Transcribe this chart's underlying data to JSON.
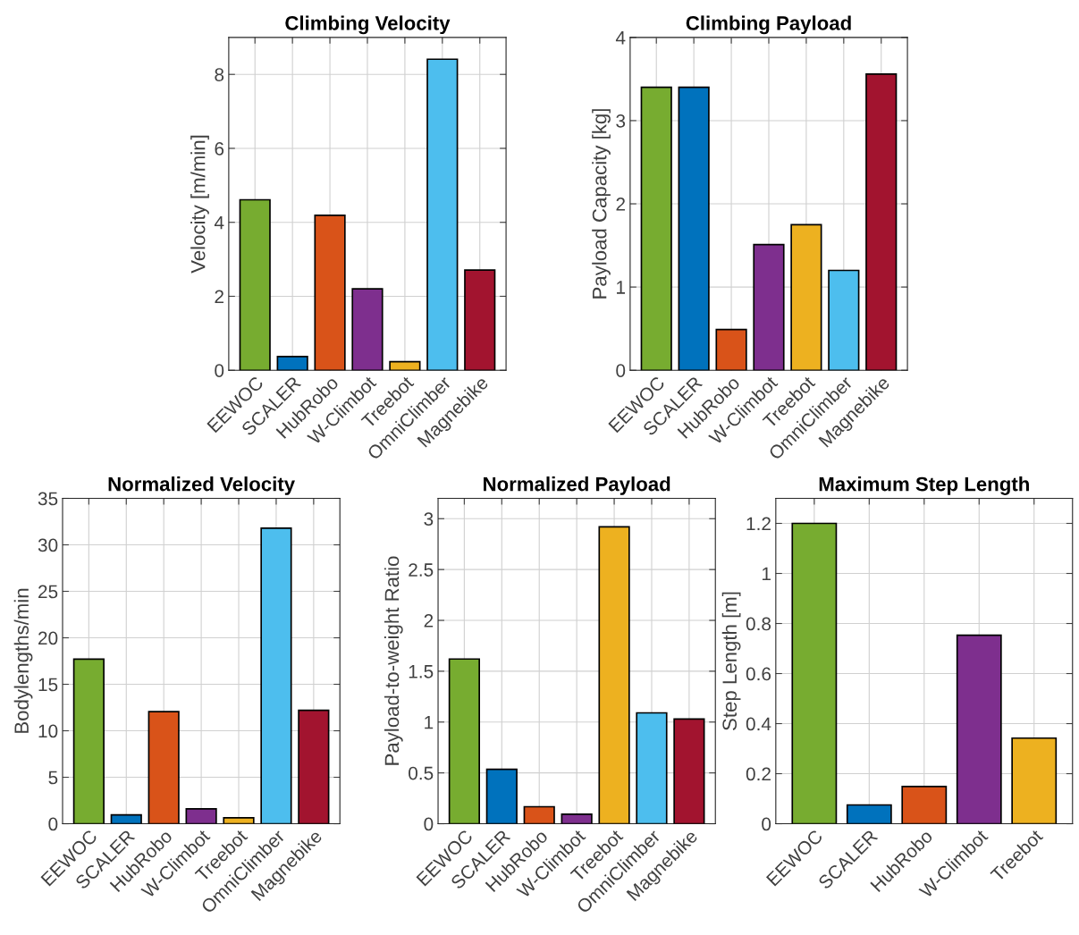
{
  "chart_data": [
    {
      "type": "bar",
      "title": "Climbing Velocity",
      "ylabel": "Velocity [m/min]",
      "categories": [
        "EEWOC",
        "SCALER",
        "HubRobo",
        "W-Climbot",
        "Treebot",
        "OmniClimber",
        "Magnebike"
      ],
      "values": [
        4.61,
        0.37,
        4.19,
        2.2,
        0.23,
        8.41,
        2.71
      ],
      "colors": [
        "#77ac30",
        "#0072bd",
        "#d95319",
        "#7e2f8e",
        "#edb120",
        "#4dbeee",
        "#a2142f"
      ],
      "ylim": [
        0,
        9
      ],
      "yticks": [
        0,
        2,
        4,
        6,
        8
      ],
      "grid": true
    },
    {
      "type": "bar",
      "title": "Climbing Payload",
      "ylabel": "Payload Capacity [kg]",
      "categories": [
        "EEWOC",
        "SCALER",
        "HubRobo",
        "W-Climbot",
        "Treebot",
        "OmniClimber",
        "Magnebike"
      ],
      "values": [
        3.4,
        3.4,
        0.49,
        1.51,
        1.75,
        1.2,
        3.56
      ],
      "colors": [
        "#77ac30",
        "#0072bd",
        "#d95319",
        "#7e2f8e",
        "#edb120",
        "#4dbeee",
        "#a2142f"
      ],
      "ylim": [
        0,
        4
      ],
      "yticks": [
        0,
        1,
        2,
        3,
        4
      ],
      "grid": true
    },
    {
      "type": "bar",
      "title": "Normalized Velocity",
      "ylabel": "Bodylengths/min",
      "categories": [
        "EEWOC",
        "SCALER",
        "HubRobo",
        "W-Climbot",
        "Treebot",
        "OmniClimber",
        "Magnebike"
      ],
      "values": [
        17.7,
        0.96,
        12.05,
        1.6,
        0.64,
        31.8,
        12.2
      ],
      "colors": [
        "#77ac30",
        "#0072bd",
        "#d95319",
        "#7e2f8e",
        "#edb120",
        "#4dbeee",
        "#a2142f"
      ],
      "ylim": [
        0,
        35
      ],
      "yticks": [
        0,
        5,
        10,
        15,
        20,
        25,
        30,
        35
      ],
      "grid": true
    },
    {
      "type": "bar",
      "title": "Normalized Payload",
      "ylabel": "Payload-to-weight Ratio",
      "categories": [
        "EEWOC",
        "SCALER",
        "HubRobo",
        "W-Climbot",
        "Treebot",
        "OmniClimber",
        "Magnebike"
      ],
      "values": [
        1.62,
        0.535,
        0.167,
        0.094,
        2.92,
        1.09,
        1.03
      ],
      "colors": [
        "#77ac30",
        "#0072bd",
        "#d95319",
        "#7e2f8e",
        "#edb120",
        "#4dbeee",
        "#a2142f"
      ],
      "ylim": [
        0,
        3.2
      ],
      "yticks": [
        0,
        0.5,
        1,
        1.5,
        2,
        2.5,
        3
      ],
      "grid": true
    },
    {
      "type": "bar",
      "title": "Maximum Step Length",
      "ylabel": "Step Length [m]",
      "categories": [
        "EEWOC",
        "SCALER",
        "HubRobo",
        "W-Climbot",
        "Treebot"
      ],
      "values": [
        1.2,
        0.075,
        0.149,
        0.753,
        0.342
      ],
      "colors": [
        "#77ac30",
        "#0072bd",
        "#d95319",
        "#7e2f8e",
        "#edb120"
      ],
      "ylim": [
        0,
        1.3
      ],
      "yticks": [
        0,
        0.2,
        0.4,
        0.6,
        0.8,
        1,
        1.2
      ],
      "grid": true
    }
  ]
}
